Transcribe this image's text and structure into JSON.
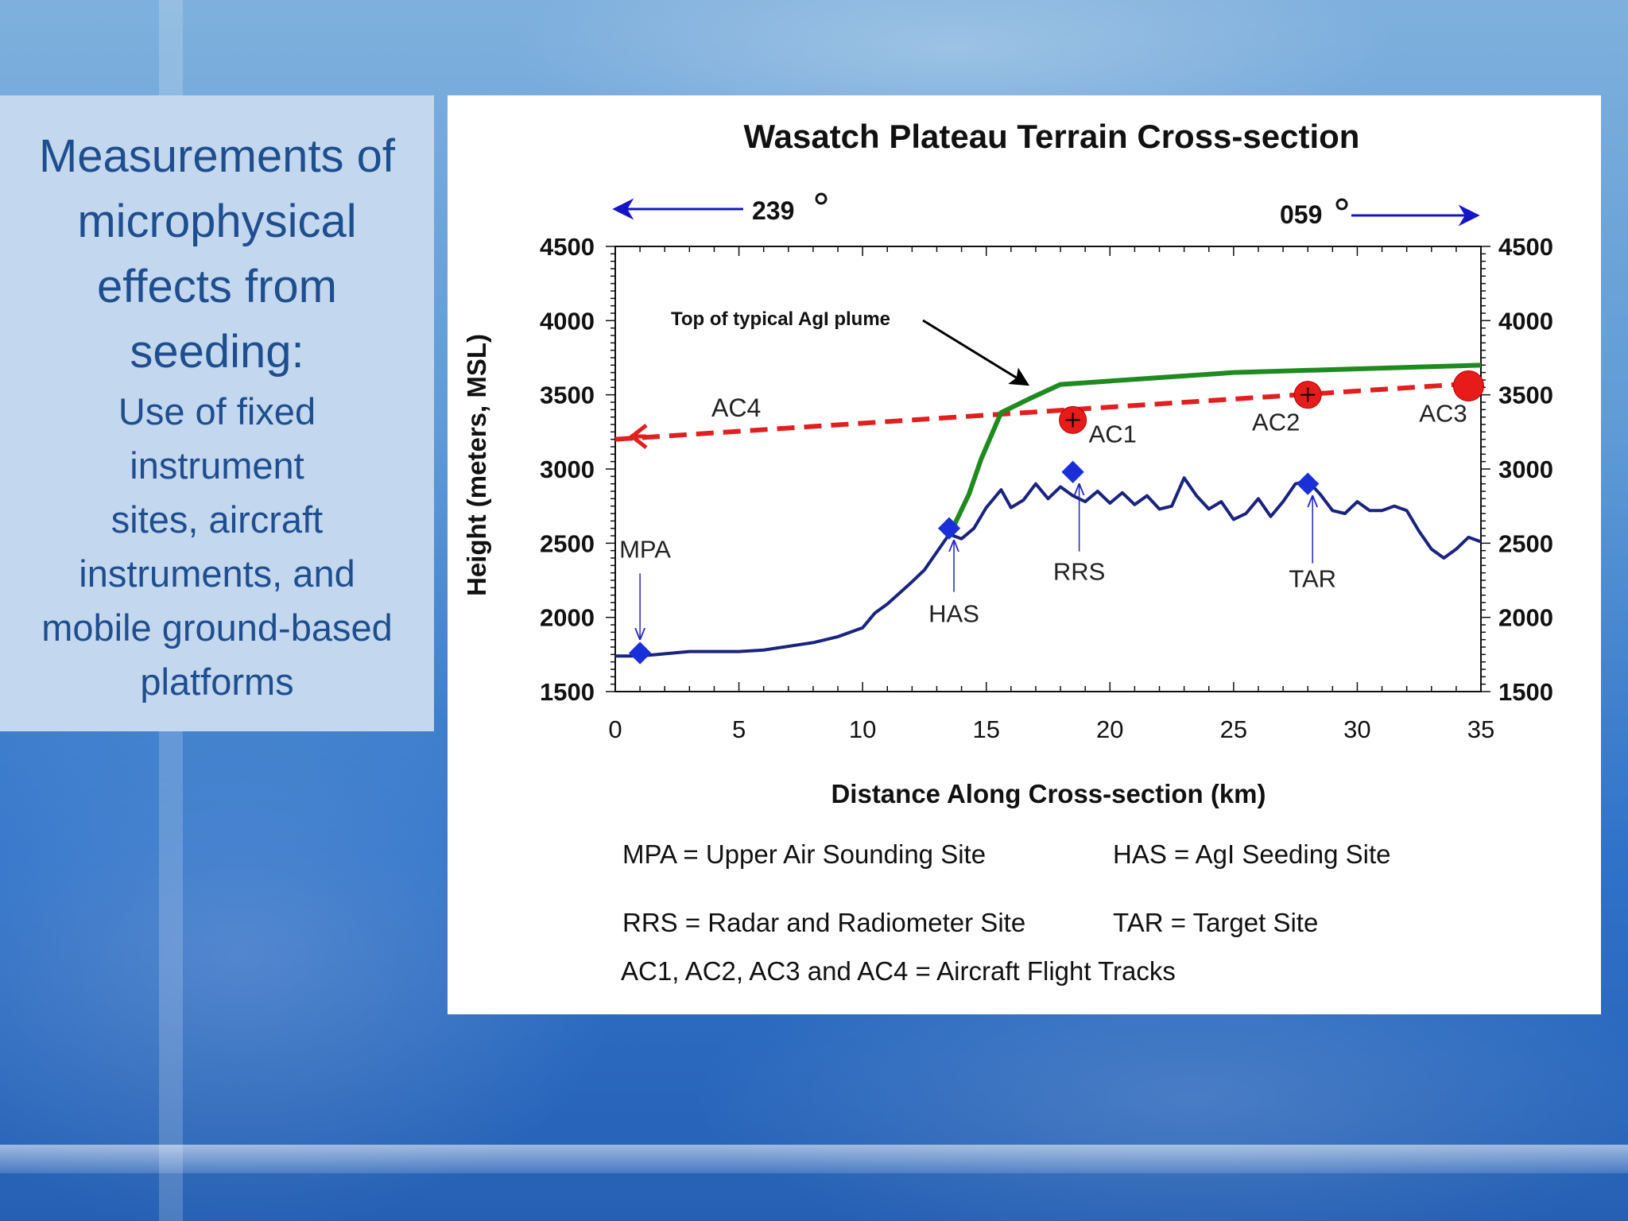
{
  "slide": {
    "heading_lines": [
      "Measurements of",
      "microphysical",
      "effects from",
      "seeding:"
    ],
    "body_lines": [
      "Use of fixed",
      "instrument",
      "sites, aircraft",
      "instruments, and",
      "mobile ground-based",
      "platforms"
    ]
  },
  "chart_data": {
    "type": "line",
    "title": "Wasatch Plateau Terrain Cross-section",
    "xlabel": "Distance Along Cross-section (km)",
    "ylabel": "Height (meters, MSL)",
    "xlim": [
      0,
      35
    ],
    "ylim": [
      1500,
      4500
    ],
    "x_ticks": [
      "0",
      "5",
      "10",
      "15",
      "20",
      "25",
      "30",
      "35"
    ],
    "y_ticks": [
      "1500",
      "2000",
      "2500",
      "3000",
      "3500",
      "4000",
      "4500"
    ],
    "y_ticks_right": [
      "1500",
      "2000",
      "2500",
      "3000",
      "3500",
      "4000",
      "4500"
    ],
    "direction_left": "239",
    "direction_right": "059",
    "series": [
      {
        "role": "terrain",
        "color": "#1a237e",
        "x": [
          0,
          1,
          3,
          5,
          6,
          8,
          9,
          10,
          10.5,
          11,
          12,
          12.5,
          13,
          13.5,
          14,
          14.5,
          15,
          15.6,
          16,
          16.5,
          17,
          17.5,
          18,
          18.5,
          19,
          19.5,
          20,
          20.5,
          21,
          21.5,
          22,
          22.5,
          23,
          23.5,
          24,
          24.5,
          25,
          25.5,
          26,
          26.5,
          27,
          27.5,
          28,
          28.5,
          29,
          29.5,
          30,
          30.5,
          31,
          31.5,
          32,
          32.5,
          33,
          33.5,
          34,
          34.5,
          35
        ],
        "y": [
          1740,
          1740,
          1770,
          1770,
          1780,
          1830,
          1870,
          1930,
          2030,
          2090,
          2240,
          2320,
          2440,
          2560,
          2530,
          2600,
          2740,
          2860,
          2740,
          2790,
          2900,
          2800,
          2880,
          2820,
          2780,
          2850,
          2770,
          2840,
          2760,
          2820,
          2730,
          2750,
          2940,
          2820,
          2730,
          2780,
          2660,
          2700,
          2800,
          2680,
          2780,
          2900,
          2920,
          2830,
          2720,
          2700,
          2780,
          2720,
          2720,
          2750,
          2720,
          2580,
          2460,
          2400,
          2460,
          2540,
          2510
        ]
      },
      {
        "role": "plume_top",
        "color": "#1f8a1f",
        "x": [
          13.7,
          14.3,
          14.8,
          15.6,
          16.7,
          18,
          25,
          35
        ],
        "y": [
          2620,
          2830,
          3070,
          3380,
          3470,
          3570,
          3650,
          3700
        ]
      },
      {
        "role": "aircraft_track",
        "color": "#e21f1f",
        "x": [
          0,
          35
        ],
        "y": [
          3200,
          3580
        ]
      }
    ],
    "sites": [
      {
        "label": "MPA",
        "x": 1,
        "y": 1760
      },
      {
        "label": "HAS",
        "x": 13.5,
        "y": 2600
      },
      {
        "label": "RRS",
        "x": 18.5,
        "y": 2980
      },
      {
        "label": "TAR",
        "x": 28,
        "y": 2900
      }
    ],
    "aircraft": [
      {
        "label": "AC1",
        "x": 18.5,
        "y": 3330
      },
      {
        "label": "AC2",
        "x": 28,
        "y": 3500
      },
      {
        "label": "AC3",
        "x": 34.5,
        "y": 3560
      }
    ],
    "track_label": "AC4",
    "annotation": "Top of typical AgI plume",
    "legend": [
      "MPA = Upper Air Sounding Site",
      "HAS = AgI Seeding Site",
      "RRS = Radar and Radiometer Site",
      "TAR = Target Site",
      "AC1, AC2, AC3 and AC4 = Aircraft Flight Tracks"
    ]
  }
}
